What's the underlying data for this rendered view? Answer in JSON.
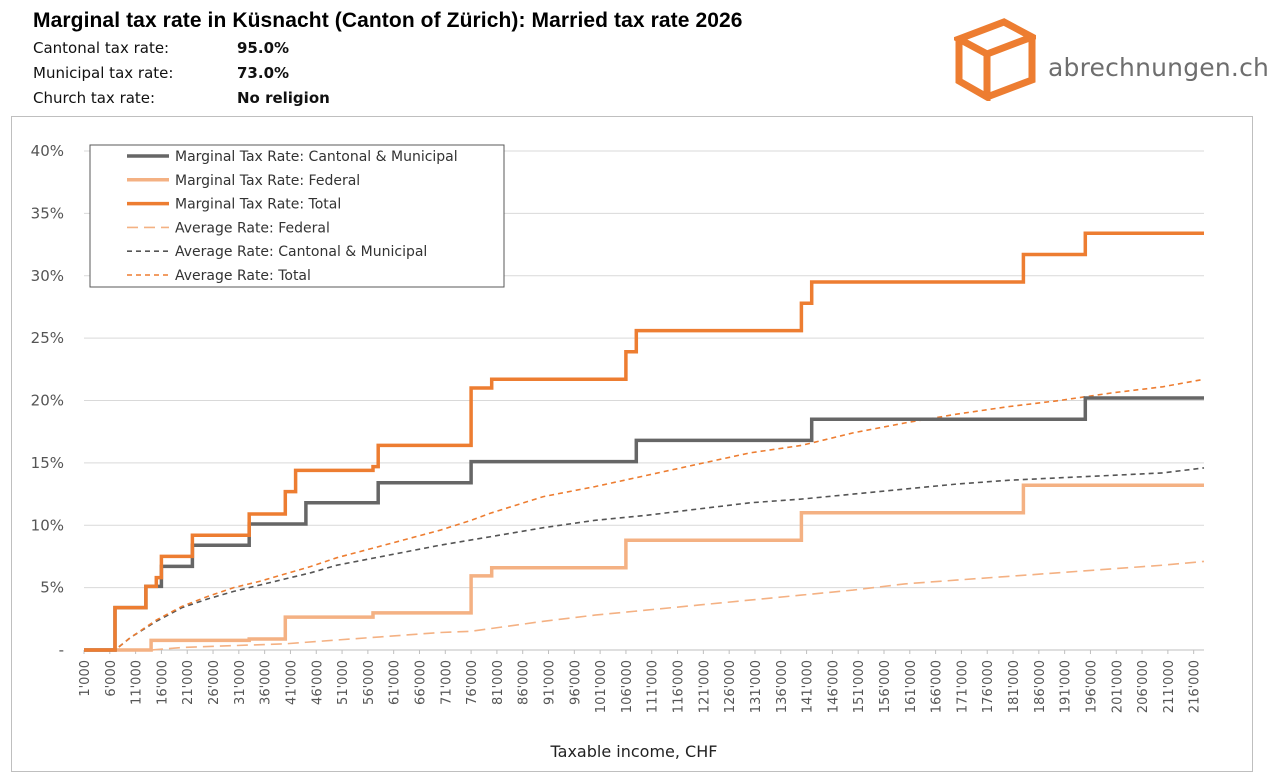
{
  "header": {
    "title": "Marginal tax rate in Küsnacht (Canton of Zürich): Married tax rate 2026",
    "rows": [
      {
        "label": "Cantonal tax rate:",
        "value": "95.0%"
      },
      {
        "label": "Municipal tax rate:",
        "value": "73.0%"
      },
      {
        "label": "Church tax rate:",
        "value": "No religion"
      }
    ]
  },
  "brand": {
    "logo_text": "abrechnungen.ch",
    "icon": "box-icon",
    "accent_color": "#ed7d31",
    "text_color": "#6e6e6e"
  },
  "chart_data": {
    "type": "line",
    "xlabel": "Taxable income, CHF",
    "ylabel": "",
    "ylim": [
      0,
      40
    ],
    "xlim": [
      1000,
      218000
    ],
    "grid": true,
    "legend_position": "top-left",
    "y_ticks": [
      {
        "value": 0,
        "label": "-"
      },
      {
        "value": 5,
        "label": "5%"
      },
      {
        "value": 10,
        "label": "10%"
      },
      {
        "value": 15,
        "label": "15%"
      },
      {
        "value": 20,
        "label": "20%"
      },
      {
        "value": 25,
        "label": "25%"
      },
      {
        "value": 30,
        "label": "30%"
      },
      {
        "value": 35,
        "label": "35%"
      },
      {
        "value": 40,
        "label": "40%"
      }
    ],
    "x_ticks": [
      "1'000",
      "6'000",
      "11'000",
      "16'000",
      "21'000",
      "26'000",
      "31'000",
      "36'000",
      "41'000",
      "46'000",
      "51'000",
      "56'000",
      "61'000",
      "66'000",
      "71'000",
      "76'000",
      "81'000",
      "86'000",
      "91'000",
      "96'000",
      "101'000",
      "106'000",
      "111'000",
      "116'000",
      "121'000",
      "126'000",
      "131'000",
      "136'000",
      "141'000",
      "146'000",
      "151'000",
      "156'000",
      "161'000",
      "166'000",
      "171'000",
      "176'000",
      "181'000",
      "186'000",
      "191'000",
      "196'000",
      "201'000",
      "206'000",
      "211'000",
      "216'000"
    ],
    "series": [
      {
        "name": "Marginal Tax Rate: Cantonal & Municipal",
        "color": "#666666",
        "style": "solid",
        "width": 3.5,
        "step": true,
        "points": [
          [
            1000,
            0
          ],
          [
            7000,
            0
          ],
          [
            7000,
            3.4
          ],
          [
            13000,
            3.4
          ],
          [
            13000,
            5.1
          ],
          [
            16000,
            5.1
          ],
          [
            16000,
            6.7
          ],
          [
            22000,
            6.7
          ],
          [
            22000,
            8.4
          ],
          [
            33000,
            8.4
          ],
          [
            33000,
            10.1
          ],
          [
            44000,
            10.1
          ],
          [
            44000,
            11.8
          ],
          [
            58000,
            11.8
          ],
          [
            58000,
            13.4
          ],
          [
            76000,
            13.4
          ],
          [
            76000,
            15.1
          ],
          [
            108000,
            15.1
          ],
          [
            108000,
            16.8
          ],
          [
            142000,
            16.8
          ],
          [
            142000,
            18.5
          ],
          [
            195000,
            18.5
          ],
          [
            195000,
            20.2
          ],
          [
            218000,
            20.2
          ]
        ]
      },
      {
        "name": "Marginal Tax Rate: Federal",
        "color": "#f4b183",
        "style": "solid",
        "width": 3.5,
        "step": true,
        "points": [
          [
            1000,
            0
          ],
          [
            14000,
            0
          ],
          [
            14000,
            0.77
          ],
          [
            33000,
            0.77
          ],
          [
            33000,
            0.88
          ],
          [
            40000,
            0.88
          ],
          [
            40000,
            2.64
          ],
          [
            57000,
            2.64
          ],
          [
            57000,
            2.97
          ],
          [
            76000,
            2.97
          ],
          [
            76000,
            5.94
          ],
          [
            80000,
            5.94
          ],
          [
            80000,
            6.6
          ],
          [
            106000,
            6.6
          ],
          [
            106000,
            8.8
          ],
          [
            140000,
            8.8
          ],
          [
            140000,
            11.0
          ],
          [
            183000,
            11.0
          ],
          [
            183000,
            13.2
          ],
          [
            218000,
            13.2
          ]
        ]
      },
      {
        "name": "Marginal Tax Rate: Total",
        "color": "#ed7d31",
        "style": "solid",
        "width": 3.5,
        "step": true,
        "points": [
          [
            1000,
            0
          ],
          [
            7000,
            0
          ],
          [
            7000,
            3.4
          ],
          [
            13000,
            3.4
          ],
          [
            13000,
            5.1
          ],
          [
            15000,
            5.1
          ],
          [
            15000,
            5.8
          ],
          [
            16000,
            5.8
          ],
          [
            16000,
            7.5
          ],
          [
            22000,
            7.5
          ],
          [
            22000,
            9.2
          ],
          [
            33000,
            9.2
          ],
          [
            33000,
            10.9
          ],
          [
            40000,
            10.9
          ],
          [
            40000,
            12.7
          ],
          [
            42000,
            12.7
          ],
          [
            42000,
            14.4
          ],
          [
            57000,
            14.4
          ],
          [
            57000,
            14.7
          ],
          [
            58000,
            14.7
          ],
          [
            58000,
            16.4
          ],
          [
            76000,
            16.4
          ],
          [
            76000,
            21.0
          ],
          [
            80000,
            21.0
          ],
          [
            80000,
            21.7
          ],
          [
            106000,
            21.7
          ],
          [
            106000,
            23.9
          ],
          [
            108000,
            23.9
          ],
          [
            108000,
            25.6
          ],
          [
            140000,
            25.6
          ],
          [
            140000,
            27.8
          ],
          [
            142000,
            27.8
          ],
          [
            142000,
            29.5
          ],
          [
            183000,
            29.5
          ],
          [
            183000,
            31.7
          ],
          [
            195000,
            31.7
          ],
          [
            195000,
            33.4
          ],
          [
            218000,
            33.4
          ]
        ]
      },
      {
        "name": "Average Rate: Federal",
        "color": "#f4b183",
        "style": "dashed-long",
        "width": 1.6,
        "step": false,
        "points": [
          [
            1000,
            0
          ],
          [
            14000,
            0
          ],
          [
            20000,
            0.2
          ],
          [
            30000,
            0.35
          ],
          [
            40000,
            0.5
          ],
          [
            50000,
            0.8
          ],
          [
            60000,
            1.1
          ],
          [
            70000,
            1.4
          ],
          [
            76000,
            1.5
          ],
          [
            90000,
            2.3
          ],
          [
            100000,
            2.8
          ],
          [
            110000,
            3.2
          ],
          [
            120000,
            3.6
          ],
          [
            130000,
            4.0
          ],
          [
            140000,
            4.4
          ],
          [
            150000,
            4.8
          ],
          [
            160000,
            5.3
          ],
          [
            170000,
            5.6
          ],
          [
            180000,
            5.9
          ],
          [
            190000,
            6.2
          ],
          [
            200000,
            6.5
          ],
          [
            210000,
            6.8
          ],
          [
            218000,
            7.1
          ]
        ]
      },
      {
        "name": "Average Rate: Cantonal & Municipal",
        "color": "#555555",
        "style": "dashed-short",
        "width": 1.6,
        "step": false,
        "points": [
          [
            1000,
            0
          ],
          [
            7000,
            0
          ],
          [
            10000,
            1.0
          ],
          [
            15000,
            2.3
          ],
          [
            20000,
            3.4
          ],
          [
            25000,
            4.1
          ],
          [
            30000,
            4.7
          ],
          [
            35000,
            5.2
          ],
          [
            40000,
            5.7
          ],
          [
            45000,
            6.2
          ],
          [
            50000,
            6.8
          ],
          [
            60000,
            7.6
          ],
          [
            70000,
            8.4
          ],
          [
            80000,
            9.1
          ],
          [
            90000,
            9.8
          ],
          [
            100000,
            10.4
          ],
          [
            110000,
            10.8
          ],
          [
            120000,
            11.3
          ],
          [
            130000,
            11.8
          ],
          [
            140000,
            12.1
          ],
          [
            150000,
            12.5
          ],
          [
            160000,
            12.9
          ],
          [
            170000,
            13.3
          ],
          [
            180000,
            13.6
          ],
          [
            190000,
            13.8
          ],
          [
            200000,
            14.0
          ],
          [
            210000,
            14.2
          ],
          [
            218000,
            14.6
          ]
        ]
      },
      {
        "name": "Average Rate: Total",
        "color": "#ed7d31",
        "style": "dashed-short",
        "width": 1.6,
        "step": false,
        "points": [
          [
            1000,
            0
          ],
          [
            7000,
            0
          ],
          [
            10000,
            1.0
          ],
          [
            15000,
            2.4
          ],
          [
            20000,
            3.5
          ],
          [
            25000,
            4.3
          ],
          [
            30000,
            5.0
          ],
          [
            35000,
            5.5
          ],
          [
            40000,
            6.1
          ],
          [
            45000,
            6.7
          ],
          [
            50000,
            7.4
          ],
          [
            60000,
            8.5
          ],
          [
            70000,
            9.6
          ],
          [
            76000,
            10.4
          ],
          [
            80000,
            11.0
          ],
          [
            90000,
            12.3
          ],
          [
            100000,
            13.1
          ],
          [
            110000,
            14.0
          ],
          [
            120000,
            14.9
          ],
          [
            130000,
            15.8
          ],
          [
            140000,
            16.4
          ],
          [
            145000,
            16.9
          ],
          [
            150000,
            17.4
          ],
          [
            160000,
            18.2
          ],
          [
            170000,
            18.9
          ],
          [
            180000,
            19.5
          ],
          [
            190000,
            20.0
          ],
          [
            200000,
            20.6
          ],
          [
            210000,
            21.1
          ],
          [
            218000,
            21.7
          ]
        ]
      }
    ]
  }
}
